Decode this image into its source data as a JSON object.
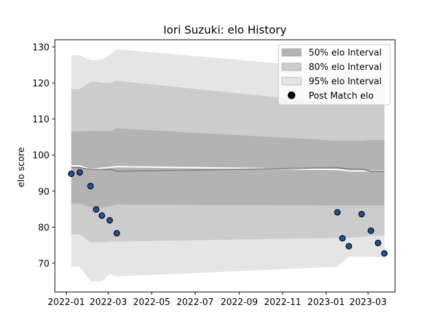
{
  "chart_data": {
    "type": "line",
    "title": "Iori Suzuki: elo History",
    "xlabel": "",
    "ylabel": "elo score",
    "xlim": [
      "2021-12-16",
      "2023-04-08"
    ],
    "ylim": [
      62,
      132
    ],
    "x_ticks": [
      "2022-01",
      "2022-03",
      "2022-05",
      "2022-07",
      "2022-09",
      "2022-11",
      "2023-01",
      "2023-03"
    ],
    "y_ticks": [
      70,
      80,
      90,
      100,
      110,
      120,
      130
    ],
    "grid": false,
    "legend_position": "top-right",
    "legend": [
      "50% elo Interval",
      "80% elo Interval",
      "95% elo Interval",
      "Post Match elo"
    ],
    "colors": {
      "band50": "#b3b3b3",
      "band80": "#cccccc",
      "band95": "#e5e5e5",
      "mean_line": "#ffffff",
      "median_line": "#808080",
      "points": "#1f4e96",
      "points_edge": "#000000"
    },
    "bands": {
      "x": [
        "2022-01-08",
        "2022-01-20",
        "2022-02-04",
        "2022-02-12",
        "2022-02-20",
        "2022-03-03",
        "2022-03-13",
        "2023-01-17",
        "2023-02-02",
        "2023-02-20",
        "2023-03-05",
        "2023-03-15",
        "2023-03-24"
      ],
      "p50": {
        "lower": [
          86.5,
          86.5,
          85.5,
          85.5,
          85.5,
          85.8,
          86.3,
          86.0,
          86.0,
          86.0,
          86.0,
          86.0,
          86.0
        ],
        "upper": [
          106.5,
          106.5,
          106.7,
          106.7,
          106.6,
          106.6,
          107.4,
          104.0,
          104.0,
          104.0,
          104.2,
          104.2,
          104.2
        ]
      },
      "p80": {
        "lower": [
          78.0,
          78.0,
          75.8,
          75.8,
          75.8,
          76.0,
          76.0,
          77.0,
          77.0,
          77.3,
          77.6,
          77.6,
          77.6
        ],
        "upper": [
          118.3,
          118.3,
          120.3,
          120.3,
          120.1,
          120.0,
          120.6,
          114.3,
          114.2,
          114.2,
          114.2,
          114.2,
          114.2
        ]
      },
      "p95": {
        "lower": [
          69.0,
          69.0,
          65.0,
          65.0,
          65.0,
          67.0,
          66.3,
          69.0,
          71.8,
          71.8,
          71.8,
          71.6,
          71.6
        ],
        "upper": [
          127.7,
          127.7,
          126.3,
          126.3,
          126.5,
          127.8,
          129.4,
          124.0,
          123.5,
          121.9,
          122.0,
          122.2,
          122.2
        ]
      }
    },
    "mean_line": {
      "x": [
        "2022-01-08",
        "2022-01-20",
        "2022-02-04",
        "2022-03-13",
        "2023-01-17",
        "2023-02-02",
        "2023-03-24"
      ],
      "values": [
        97.0,
        97.0,
        96.0,
        96.8,
        96.0,
        95.6,
        95.6
      ]
    },
    "median_line": {
      "x": [
        "2022-01-08",
        "2022-01-20",
        "2022-02-04",
        "2022-02-20",
        "2022-03-03",
        "2022-03-13",
        "2023-01-17",
        "2023-02-02",
        "2023-02-20",
        "2023-03-05",
        "2023-03-24"
      ],
      "values": [
        96.5,
        96.5,
        96.0,
        96.0,
        96.1,
        95.5,
        96.5,
        96.1,
        96.1,
        95.5,
        95.5
      ]
    },
    "series": [
      {
        "name": "Post Match elo",
        "x": [
          "2022-01-08",
          "2022-01-20",
          "2022-02-04",
          "2022-02-12",
          "2022-02-20",
          "2022-03-03",
          "2022-03-13",
          "2023-01-17",
          "2023-01-24",
          "2023-02-02",
          "2023-02-20",
          "2023-03-05",
          "2023-03-15",
          "2023-03-24"
        ],
        "values": [
          94.8,
          95.2,
          91.4,
          84.9,
          83.2,
          81.9,
          78.3,
          84.1,
          76.9,
          74.7,
          83.6,
          79.0,
          75.6,
          72.7
        ]
      }
    ]
  }
}
